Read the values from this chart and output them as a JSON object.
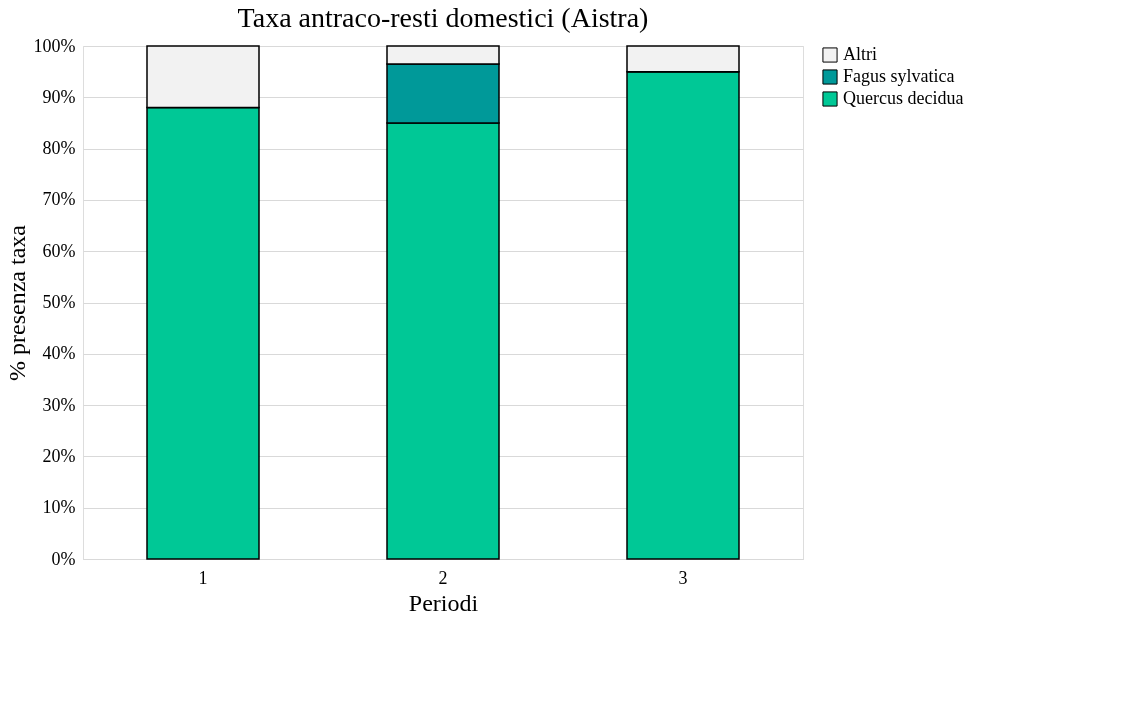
{
  "chart_data": {
    "type": "bar",
    "stacked": true,
    "title": "Taxa antraco-resti domestici (Aistra)",
    "xlabel": "Periodi",
    "ylabel": "% presenza taxa",
    "categories": [
      "1",
      "2",
      "3"
    ],
    "series": [
      {
        "name": "Quercus decidua",
        "color": "#00c896",
        "values": [
          88,
          85,
          95
        ]
      },
      {
        "name": "Fagus sylvatica",
        "color": "#009999",
        "values": [
          0,
          11.5,
          0
        ]
      },
      {
        "name": "Altri",
        "color": "#f2f2f2",
        "values": [
          12,
          3.5,
          5
        ]
      }
    ],
    "ylim": [
      0,
      100
    ],
    "yticks": [
      {
        "value": 0,
        "label": "0%"
      },
      {
        "value": 10,
        "label": "10%"
      },
      {
        "value": 20,
        "label": "20%"
      },
      {
        "value": 30,
        "label": "30%"
      },
      {
        "value": 40,
        "label": "40%"
      },
      {
        "value": 50,
        "label": "50%"
      },
      {
        "value": 60,
        "label": "60%"
      },
      {
        "value": 70,
        "label": "70%"
      },
      {
        "value": 80,
        "label": "80%"
      },
      {
        "value": 90,
        "label": "90%"
      },
      {
        "value": 100,
        "label": "100%"
      }
    ],
    "grid": "y",
    "legend": "right"
  }
}
